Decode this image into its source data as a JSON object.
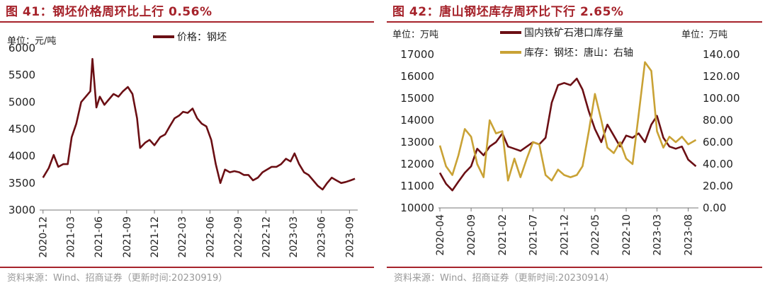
{
  "left": {
    "title": "图 41：钢坯价格周环比上行 0.56%",
    "source": "资料来源：Wind、招商证券（更新时间:20230919）",
    "unit_label": "单位：元/吨"
  },
  "right": {
    "title": "图 42：唐山钢坯库存周环比下行 2.65%",
    "source": "资料来源：Wind、招商证券（更新时间:20230914）",
    "unit_label_left": "单位：万吨",
    "unit_label_right": "单位：万吨"
  },
  "colors": {
    "accent": "#a6232b",
    "series_dark": "#6b0f14",
    "series_gold": "#c9a235"
  },
  "chart_data": [
    {
      "type": "line",
      "ylim": [
        3000,
        6000
      ],
      "yticks": [
        3000,
        3500,
        4000,
        4500,
        5000,
        5500,
        6000
      ],
      "xticks": [
        "2020-12",
        "2021-03",
        "2021-06",
        "2021-09",
        "2021-12",
        "2022-03",
        "2022-06",
        "2022-09",
        "2022-12",
        "2023-03",
        "2023-06",
        "2023-09"
      ],
      "legend_position": "top-center",
      "series": [
        {
          "name": "价格：钢坯",
          "color": "#6b0f14",
          "x": [
            "2020-12-01",
            "2020-12-20",
            "2021-01-05",
            "2021-01-20",
            "2021-02-05",
            "2021-02-20",
            "2021-03-05",
            "2021-03-20",
            "2021-04-05",
            "2021-04-20",
            "2021-05-05",
            "2021-05-12",
            "2021-05-25",
            "2021-06-05",
            "2021-06-20",
            "2021-07-05",
            "2021-07-20",
            "2021-08-05",
            "2021-08-20",
            "2021-09-05",
            "2021-09-20",
            "2021-10-05",
            "2021-10-15",
            "2021-11-01",
            "2021-11-15",
            "2021-12-01",
            "2021-12-20",
            "2022-01-05",
            "2022-01-20",
            "2022-02-05",
            "2022-02-20",
            "2022-03-05",
            "2022-03-20",
            "2022-04-05",
            "2022-04-20",
            "2022-05-05",
            "2022-05-20",
            "2022-06-05",
            "2022-06-20",
            "2022-07-05",
            "2022-07-20",
            "2022-08-05",
            "2022-08-20",
            "2022-09-05",
            "2022-09-20",
            "2022-10-05",
            "2022-10-20",
            "2022-11-05",
            "2022-11-20",
            "2022-12-05",
            "2022-12-20",
            "2023-01-05",
            "2023-01-20",
            "2023-02-05",
            "2023-02-20",
            "2023-03-05",
            "2023-03-20",
            "2023-04-05",
            "2023-04-20",
            "2023-05-05",
            "2023-05-20",
            "2023-06-05",
            "2023-06-20",
            "2023-07-05",
            "2023-07-20",
            "2023-08-05",
            "2023-08-20",
            "2023-09-05",
            "2023-09-19"
          ],
          "values": [
            3600,
            3780,
            4020,
            3800,
            3850,
            3850,
            4350,
            4600,
            5000,
            5100,
            5200,
            5800,
            4900,
            5100,
            4950,
            5050,
            5150,
            5100,
            5200,
            5280,
            5150,
            4700,
            4150,
            4250,
            4300,
            4200,
            4350,
            4400,
            4550,
            4700,
            4750,
            4820,
            4800,
            4880,
            4700,
            4600,
            4550,
            4300,
            3850,
            3500,
            3750,
            3700,
            3720,
            3700,
            3650,
            3650,
            3550,
            3600,
            3700,
            3750,
            3800,
            3800,
            3850,
            3950,
            3900,
            4050,
            3850,
            3700,
            3650,
            3550,
            3450,
            3380,
            3500,
            3600,
            3550,
            3500,
            3520,
            3550,
            3580
          ]
        }
      ]
    },
    {
      "type": "line",
      "ylim": [
        10000,
        17000
      ],
      "yticks": [
        10000,
        11000,
        12000,
        13000,
        14000,
        15000,
        16000,
        17000
      ],
      "y2lim": [
        0,
        140
      ],
      "y2ticks": [
        "0.00",
        "20.00",
        "40.00",
        "60.00",
        "80.00",
        "100.00",
        "120.00",
        "140.00"
      ],
      "xticks": [
        "2020-04",
        "2020-09",
        "2021-02",
        "2021-07",
        "2021-12",
        "2022-05",
        "2022-10",
        "2023-03",
        "2023-08"
      ],
      "legend_position": "top-center",
      "series": [
        {
          "name": "国内铁矿石港口库存量",
          "color": "#6b0f14",
          "axis": "left",
          "x": [
            "2020-04-01",
            "2020-05-01",
            "2020-06-01",
            "2020-07-01",
            "2020-08-01",
            "2020-09-01",
            "2020-10-01",
            "2020-11-01",
            "2020-12-01",
            "2021-01-01",
            "2021-02-01",
            "2021-03-01",
            "2021-04-01",
            "2021-05-01",
            "2021-06-01",
            "2021-07-01",
            "2021-08-01",
            "2021-09-01",
            "2021-10-01",
            "2021-11-01",
            "2021-12-01",
            "2022-01-01",
            "2022-02-01",
            "2022-03-01",
            "2022-04-01",
            "2022-05-01",
            "2022-06-01",
            "2022-07-01",
            "2022-08-01",
            "2022-09-01",
            "2022-10-01",
            "2022-11-01",
            "2022-12-01",
            "2023-01-01",
            "2023-02-01",
            "2023-03-01",
            "2023-04-01",
            "2023-05-01",
            "2023-06-01",
            "2023-07-01",
            "2023-08-01",
            "2023-09-08"
          ],
          "values": [
            11600,
            11100,
            10800,
            11200,
            11600,
            11900,
            12700,
            12400,
            12800,
            13000,
            13400,
            12800,
            12700,
            12600,
            12800,
            13000,
            12900,
            13200,
            14800,
            15600,
            15700,
            15600,
            15900,
            15400,
            14400,
            13600,
            13000,
            13800,
            13300,
            12800,
            13300,
            13200,
            13400,
            13000,
            13800,
            14200,
            13200,
            12800,
            12700,
            12800,
            12200,
            11900
          ]
        },
        {
          "name": "库存：钢坯：唐山：右轴",
          "color": "#c9a235",
          "axis": "right",
          "x": [
            "2020-04-01",
            "2020-05-01",
            "2020-06-01",
            "2020-07-01",
            "2020-08-01",
            "2020-09-01",
            "2020-10-01",
            "2020-11-01",
            "2020-12-01",
            "2021-01-01",
            "2021-02-01",
            "2021-03-01",
            "2021-04-01",
            "2021-05-01",
            "2021-06-01",
            "2021-07-01",
            "2021-08-01",
            "2021-09-01",
            "2021-10-01",
            "2021-11-01",
            "2021-12-01",
            "2022-01-01",
            "2022-02-01",
            "2022-03-01",
            "2022-04-01",
            "2022-05-01",
            "2022-06-01",
            "2022-07-01",
            "2022-08-01",
            "2022-09-01",
            "2022-10-01",
            "2022-11-01",
            "2022-12-01",
            "2023-01-01",
            "2023-02-01",
            "2023-03-01",
            "2023-04-01",
            "2023-05-01",
            "2023-06-01",
            "2023-07-01",
            "2023-08-01",
            "2023-09-08"
          ],
          "values": [
            57,
            38,
            30,
            48,
            72,
            65,
            40,
            28,
            80,
            68,
            70,
            25,
            45,
            28,
            45,
            60,
            58,
            30,
            25,
            35,
            30,
            28,
            30,
            38,
            70,
            104,
            80,
            55,
            50,
            60,
            45,
            40,
            85,
            133,
            125,
            70,
            55,
            65,
            60,
            65,
            58,
            62
          ]
        }
      ]
    }
  ]
}
